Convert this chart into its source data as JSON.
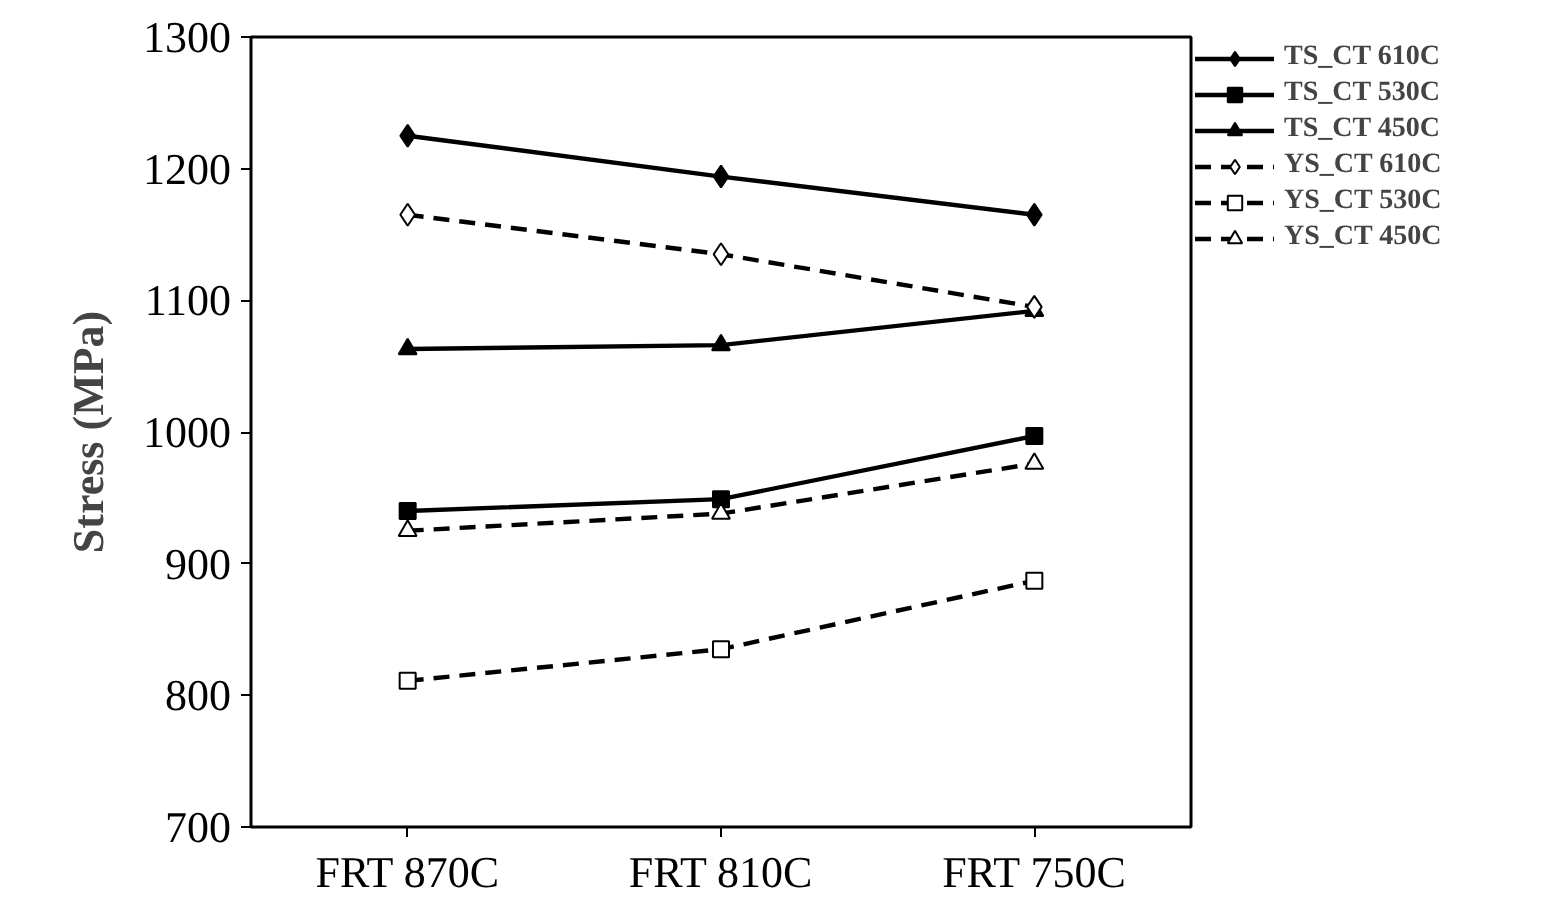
{
  "chart_data": {
    "type": "line",
    "ylabel": "Stress (MPa)",
    "categories": [
      "FRT 870C",
      "FRT 810C",
      "FRT 750C"
    ],
    "series": [
      {
        "name": "TS_CT 610C",
        "color": "#000000",
        "marker": "diamond",
        "line_style": "solid",
        "values": [
          1225,
          1194,
          1165
        ]
      },
      {
        "name": "TS_CT 530C",
        "color": "#000000",
        "marker": "square",
        "line_style": "solid",
        "values": [
          940,
          949,
          997
        ]
      },
      {
        "name": "TS_CT 450C",
        "color": "#000000",
        "marker": "triangle",
        "line_style": "solid",
        "values": [
          1063,
          1066,
          1092
        ]
      },
      {
        "name": "YS_CT 610C",
        "color": "#000000",
        "marker": "diamond",
        "line_style": "dashed",
        "values": [
          1165,
          1135,
          1095
        ]
      },
      {
        "name": "YS_CT 530C",
        "color": "#000000",
        "marker": "square",
        "line_style": "dashed",
        "values": [
          811,
          835,
          887
        ]
      },
      {
        "name": "YS_CT 450C",
        "color": "#000000",
        "marker": "triangle",
        "line_style": "dashed",
        "values": [
          925,
          938,
          976
        ]
      }
    ],
    "ylim": [
      700,
      1300
    ],
    "yticks": [
      700,
      800,
      900,
      1000,
      1100,
      1200,
      1300
    ],
    "grid": false,
    "legend": "top right"
  }
}
